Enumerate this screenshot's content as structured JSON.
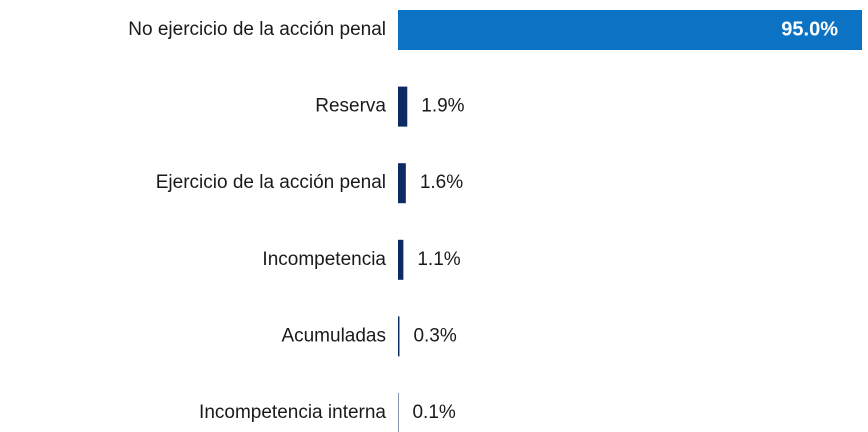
{
  "chart_data": {
    "type": "bar",
    "orientation": "horizontal",
    "categories": [
      "No ejercicio de la acción penal",
      "Reserva",
      "Ejercicio de la acción penal",
      "Incompetencia",
      "Acumuladas",
      "Incompetencia interna"
    ],
    "values": [
      95.0,
      1.9,
      1.6,
      1.1,
      0.3,
      0.1
    ],
    "value_labels": [
      "95.0%",
      "1.9%",
      "1.6%",
      "1.1%",
      "0.3%",
      "0.1%"
    ],
    "colors": [
      "#0b72c4",
      "#0d2a63",
      "#0d2a63",
      "#0d2a63",
      "#0d2a63",
      "#0d2a63"
    ]
  }
}
